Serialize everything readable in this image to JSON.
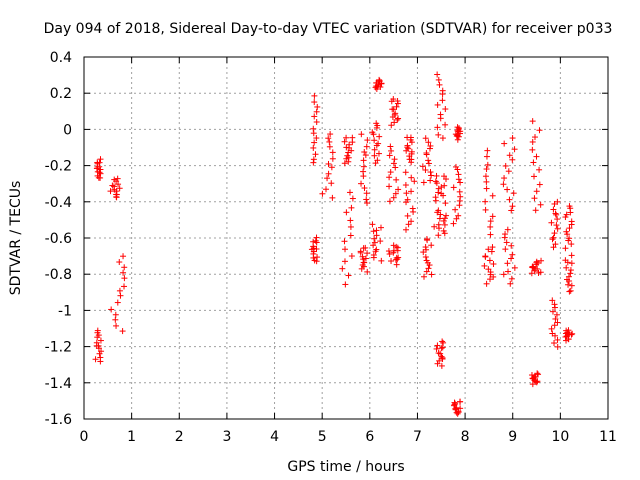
{
  "chart_data": {
    "type": "scatter",
    "title": "Day 094 of 2018, Sidereal Day-to-day VTEC variation (SDTVAR) for receiver p033",
    "xlabel": "GPS time / hours",
    "ylabel": "SDTVAR / TECUs",
    "xlim": [
      0,
      11
    ],
    "ylim": [
      -1.6,
      0.4
    ],
    "xticks": [
      "0",
      "1",
      "2",
      "3",
      "4",
      "5",
      "6",
      "7",
      "8",
      "9",
      "10",
      "11"
    ],
    "yticks": [
      "-1.6",
      "-1.4",
      "-1.2",
      "-1",
      "-0.8",
      "-0.6",
      "-0.4",
      "-0.2",
      "0",
      "0.2",
      "0.4"
    ],
    "grid": true,
    "marker": "plus",
    "color": "#ff0000",
    "clusters": [
      {
        "x": [
          0.27,
          0.35
        ],
        "y": [
          -0.27,
          -0.17
        ]
      },
      {
        "x": [
          0.24,
          0.36
        ],
        "y": [
          -1.28,
          -1.11
        ]
      },
      {
        "x": [
          0.55,
          0.8
        ],
        "y": [
          -0.38,
          -0.27
        ]
      },
      {
        "x": [
          0.55,
          0.85
        ],
        "y": [
          -1.12,
          -0.7
        ]
      },
      {
        "x": [
          4.78,
          4.9
        ],
        "y": [
          -0.19,
          0.18
        ]
      },
      {
        "x": [
          4.78,
          4.92
        ],
        "y": [
          -0.73,
          -0.6
        ]
      },
      {
        "x": [
          5.0,
          5.25
        ],
        "y": [
          -0.38,
          -0.02
        ]
      },
      {
        "x": [
          5.4,
          5.65
        ],
        "y": [
          -0.85,
          -0.35
        ]
      },
      {
        "x": [
          5.45,
          5.65
        ],
        "y": [
          -0.19,
          -0.04
        ]
      },
      {
        "x": [
          5.8,
          5.95
        ],
        "y": [
          -0.78,
          -0.65
        ]
      },
      {
        "x": [
          5.8,
          5.95
        ],
        "y": [
          -0.41,
          -0.03
        ]
      },
      {
        "x": [
          6.05,
          6.25
        ],
        "y": [
          -0.72,
          -0.52
        ]
      },
      {
        "x": [
          6.05,
          6.2
        ],
        "y": [
          -0.18,
          0.04
        ]
      },
      {
        "x": [
          6.12,
          6.25
        ],
        "y": [
          0.23,
          0.27
        ]
      },
      {
        "x": [
          6.4,
          6.6
        ],
        "y": [
          -0.74,
          -0.64
        ]
      },
      {
        "x": [
          6.4,
          6.6
        ],
        "y": [
          -0.4,
          -0.1
        ]
      },
      {
        "x": [
          6.45,
          6.6
        ],
        "y": [
          0.03,
          0.17
        ]
      },
      {
        "x": [
          6.75,
          6.95
        ],
        "y": [
          -0.55,
          -0.24
        ]
      },
      {
        "x": [
          6.75,
          6.9
        ],
        "y": [
          -0.18,
          -0.04
        ]
      },
      {
        "x": [
          7.1,
          7.3
        ],
        "y": [
          -0.82,
          -0.6
        ]
      },
      {
        "x": [
          7.1,
          7.3
        ],
        "y": [
          -0.3,
          -0.05
        ]
      },
      {
        "x": [
          7.35,
          7.6
        ],
        "y": [
          -0.58,
          -0.45
        ]
      },
      {
        "x": [
          7.35,
          7.6
        ],
        "y": [
          -0.4,
          -0.25
        ]
      },
      {
        "x": [
          7.4,
          7.6
        ],
        "y": [
          -0.05,
          0.3
        ]
      },
      {
        "x": [
          7.4,
          7.55
        ],
        "y": [
          -1.3,
          -1.17
        ]
      },
      {
        "x": [
          7.75,
          7.9
        ],
        "y": [
          -0.52,
          -0.2
        ]
      },
      {
        "x": [
          7.8,
          7.9
        ],
        "y": [
          -0.05,
          0.01
        ]
      },
      {
        "x": [
          7.75,
          7.9
        ],
        "y": [
          -1.57,
          -1.5
        ]
      },
      {
        "x": [
          8.4,
          8.6
        ],
        "y": [
          -0.85,
          -0.65
        ]
      },
      {
        "x": [
          8.4,
          8.6
        ],
        "y": [
          -0.58,
          -0.12
        ]
      },
      {
        "x": [
          8.8,
          9.05
        ],
        "y": [
          -0.85,
          -0.55
        ]
      },
      {
        "x": [
          8.8,
          9.05
        ],
        "y": [
          -0.45,
          -0.05
        ]
      },
      {
        "x": [
          9.4,
          9.6
        ],
        "y": [
          -0.8,
          -0.72
        ]
      },
      {
        "x": [
          9.4,
          9.6
        ],
        "y": [
          -0.45,
          0.04
        ]
      },
      {
        "x": [
          9.4,
          9.55
        ],
        "y": [
          -1.4,
          -1.35
        ]
      },
      {
        "x": [
          9.8,
          9.95
        ],
        "y": [
          -1.2,
          -0.95
        ]
      },
      {
        "x": [
          9.8,
          9.95
        ],
        "y": [
          -0.65,
          -0.4
        ]
      },
      {
        "x": [
          10.1,
          10.25
        ],
        "y": [
          -0.9,
          -0.7
        ]
      },
      {
        "x": [
          10.1,
          10.25
        ],
        "y": [
          -0.65,
          -0.42
        ]
      },
      {
        "x": [
          10.1,
          10.25
        ],
        "y": [
          -1.16,
          -1.11
        ]
      }
    ]
  }
}
